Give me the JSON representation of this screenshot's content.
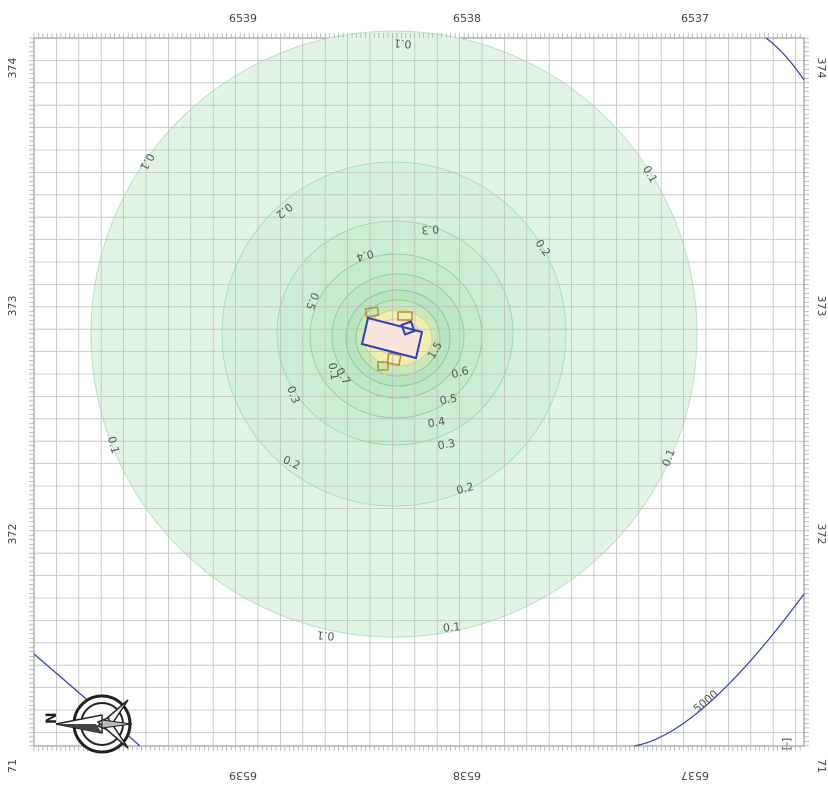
{
  "map": {
    "top_axis_labels": [
      "6539",
      "6538",
      "6537"
    ],
    "bottom_axis_labels": [
      "6539",
      "6538",
      "6537"
    ],
    "left_axis_labels": [
      "374",
      "373",
      "372",
      "71"
    ],
    "right_axis_labels": [
      "374",
      "373",
      "372",
      "71"
    ],
    "contour_labels": [
      "0.1",
      "0.1",
      "0.1",
      "0.1",
      "0.1",
      "0.1",
      "0.2",
      "0.2",
      "0.2",
      "0.2",
      "0.3",
      "0.3",
      "0.3",
      "0.4",
      "0.4",
      "0.5",
      "0.5",
      "0.6",
      "0.7",
      "1.5",
      "0.1",
      "0.1"
    ],
    "extent_label": "[-]",
    "line_label": "5000",
    "north_label": "N",
    "colors": {
      "outer_fill": "#dff3e2",
      "mid_fill": "#cfeed5",
      "inner_fill": "#bfe6c9",
      "core_fill": "#f7f1b8",
      "peak_fill": "#fad9d9",
      "contour_stroke": "#9fd9b1",
      "grid": "#c4c4c4",
      "blue_line": "#2f3fb5",
      "building": "#b88a3a"
    }
  }
}
